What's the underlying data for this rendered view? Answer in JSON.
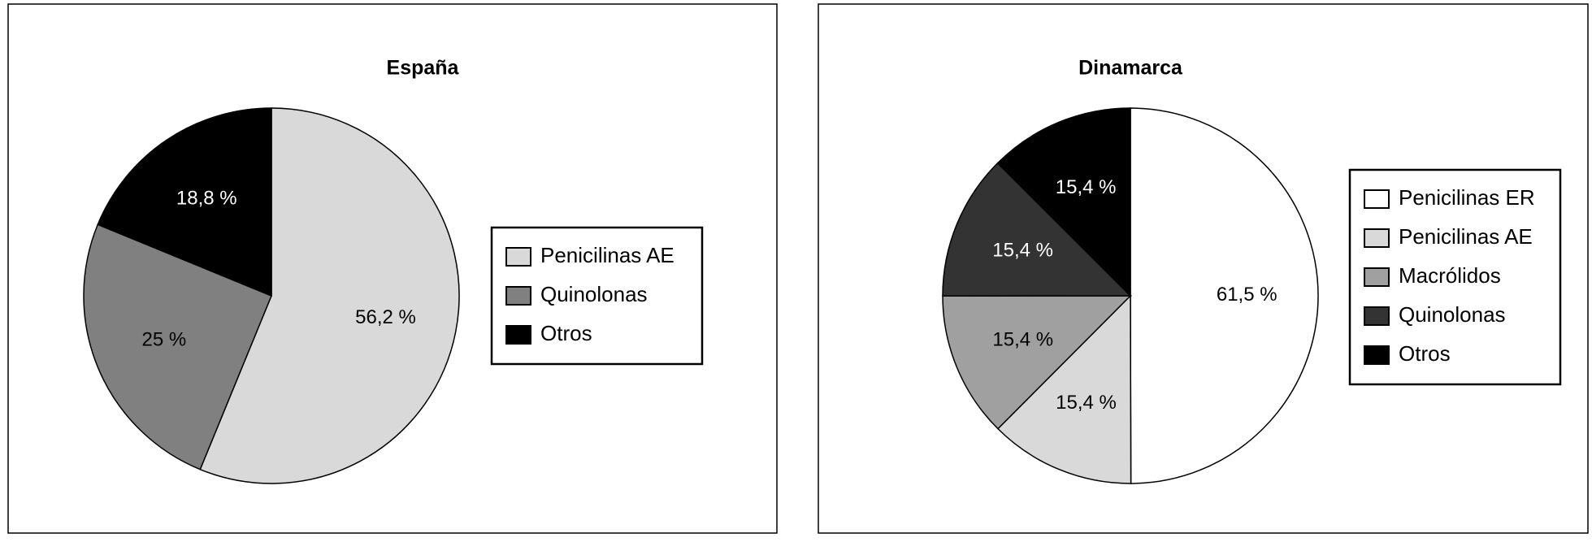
{
  "chart_data": [
    {
      "type": "pie",
      "title": "España",
      "categories": [
        "Penicilinas AE",
        "Quinolonas",
        "Otros"
      ],
      "values": [
        56.2,
        25,
        18.8
      ],
      "value_labels": [
        "56,2 %",
        "25 %",
        "18,8 %"
      ],
      "colors": [
        "#d9d9d9",
        "#808080",
        "#000000"
      ]
    },
    {
      "type": "pie",
      "title": "Dinamarca",
      "categories": [
        "Penicilinas ER",
        "Penicilinas AE",
        "Macrólidos",
        "Quinolonas",
        "Otros"
      ],
      "values": [
        61.5,
        15.4,
        15.4,
        15.4,
        15.4
      ],
      "value_labels": [
        "61,5 %",
        "15,4 %",
        "15,4 %",
        "15,4 %",
        "15,4 %"
      ],
      "colors": [
        "#ffffff",
        "#d9d9d9",
        "#a0a0a0",
        "#333333",
        "#000000"
      ]
    }
  ]
}
